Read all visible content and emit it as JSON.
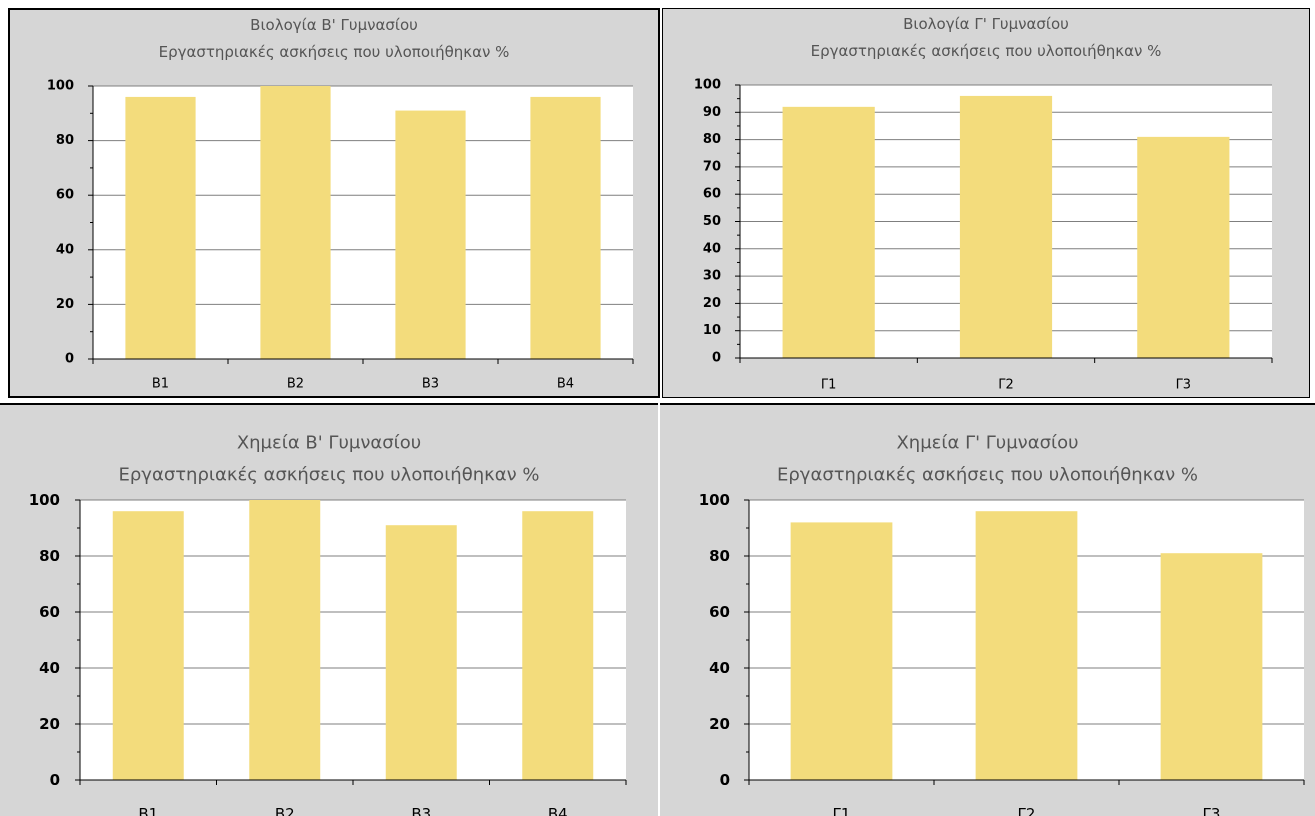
{
  "colors": {
    "bar": "#f3dc7c",
    "panel_bg": "#d6d6d6",
    "plot_bg": "#ffffff",
    "grid": "#7f7f7f",
    "title": "#555555"
  },
  "chart_data": [
    {
      "type": "bar",
      "title": "Βιολογία Β' Γυμνασίου",
      "subtitle": "Εργαστηριακές ασκήσεις που υλοποιήθηκαν %",
      "categories": [
        "Β1",
        "Β2",
        "Β3",
        "Β4"
      ],
      "values": [
        96,
        100,
        91,
        96
      ],
      "ylim": [
        0,
        100
      ],
      "yticks": [
        "0",
        "20",
        "40",
        "60",
        "80",
        "100"
      ],
      "grid": true,
      "legend": "none"
    },
    {
      "type": "bar",
      "title": "Βιολογία Γ' Γυμνασίου",
      "subtitle": "Εργαστηριακές ασκήσεις που υλοποιήθηκαν %",
      "categories": [
        "Γ1",
        "Γ2",
        "Γ3"
      ],
      "values": [
        92,
        96,
        81
      ],
      "ylim": [
        0,
        100
      ],
      "yticks": [
        "0",
        "10",
        "20",
        "30",
        "40",
        "50",
        "60",
        "70",
        "80",
        "90",
        "100"
      ],
      "grid": true,
      "legend": "none"
    },
    {
      "type": "bar",
      "title": "Χημεία Β' Γυμνασίου",
      "subtitle": "Εργαστηριακές ασκήσεις που υλοποιήθηκαν %",
      "categories": [
        "Β1",
        "Β2",
        "Β3",
        "Β4"
      ],
      "values": [
        96,
        100,
        91,
        96
      ],
      "ylim": [
        0,
        100
      ],
      "yticks": [
        "0",
        "20",
        "40",
        "60",
        "80",
        "100"
      ],
      "grid": true,
      "legend": "none"
    },
    {
      "type": "bar",
      "title": "Χημεία Γ' Γυμνασίου",
      "subtitle": "Εργαστηριακές ασκήσεις που υλοποιήθηκαν %",
      "categories": [
        "Γ1",
        "Γ2",
        "Γ3"
      ],
      "values": [
        92,
        96,
        81
      ],
      "ylim": [
        0,
        100
      ],
      "yticks": [
        "0",
        "20",
        "40",
        "60",
        "80",
        "100"
      ],
      "grid": true,
      "legend": "none"
    }
  ]
}
